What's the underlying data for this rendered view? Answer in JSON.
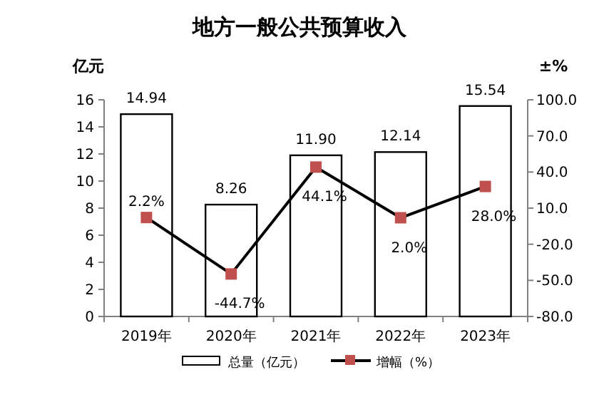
{
  "chart_data": {
    "type": "bar",
    "title": "地方一般公共预算收入",
    "ylabel": "亿元",
    "y2label": "±%",
    "categories": [
      "2019年",
      "2020年",
      "2021年",
      "2022年",
      "2023年"
    ],
    "series": [
      {
        "name": "总量（亿元）",
        "color": "#ffffff",
        "values": [
          14.94,
          8.26,
          11.9,
          12.14,
          15.54
        ],
        "value_labels": [
          "14.94",
          "8.26",
          "11.90",
          "12.14",
          "15.54"
        ]
      },
      {
        "name": "增幅（%）",
        "type": "line",
        "axis": "y2",
        "color": "#c0504d",
        "values": [
          2.2,
          -44.7,
          44.1,
          2.0,
          28.0
        ],
        "value_labels": [
          "2.2%",
          "-44.7%",
          "44.1%",
          "2.0%",
          "28.0%"
        ],
        "marker": "square"
      }
    ],
    "ylim": [
      0,
      16
    ],
    "yticks": [
      0,
      2,
      4,
      6,
      8,
      10,
      12,
      14,
      16
    ],
    "y2lim": [
      -80,
      100
    ],
    "y2ticks": [
      {
        "value": -80,
        "label": "-80.0"
      },
      {
        "value": -50,
        "label": "-50.0"
      },
      {
        "value": -20,
        "label": "-20.0"
      },
      {
        "value": 10,
        "label": "10.0"
      },
      {
        "value": 40,
        "label": "40.0"
      },
      {
        "value": 70,
        "label": "70.0"
      },
      {
        "value": 100,
        "label": "100.0"
      }
    ],
    "grid": false,
    "legend": "bottom"
  }
}
